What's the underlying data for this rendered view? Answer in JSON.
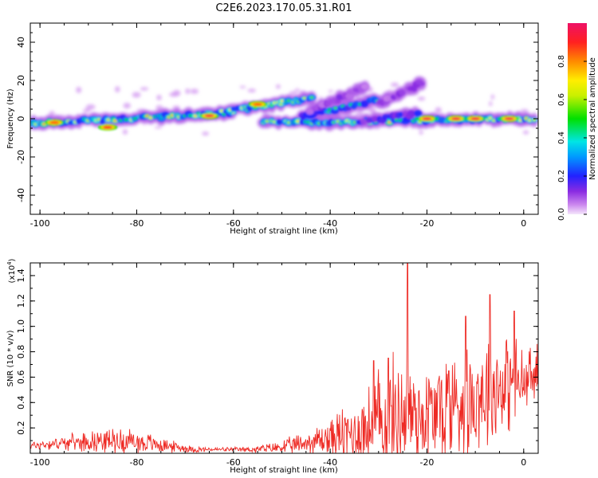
{
  "figure": {
    "title": "C2E6.2023.170.05.31.R01"
  },
  "chart_data": [
    {
      "type": "heatmap",
      "name": "spectrogram",
      "xlabel": "Height of straight line (km)",
      "ylabel": "Frequency (Hz)",
      "xlim": [
        -102,
        3
      ],
      "ylim": [
        -50,
        50
      ],
      "xticks": [
        -100,
        -80,
        -60,
        -40,
        -20,
        0
      ],
      "yticks": [
        -40,
        -20,
        0,
        20,
        40
      ],
      "colorbar": {
        "label": "Normalized spectral amplitude",
        "range": [
          0,
          1.0
        ],
        "ticks": [
          0.0,
          0.2,
          0.4,
          0.6,
          0.8
        ],
        "tick_labels": [
          "0.0",
          "0.2",
          "0.4",
          "0.6",
          "0.8"
        ]
      },
      "tracks": [
        {
          "from": [
            -102,
            -2.5
          ],
          "to": [
            -60,
            3
          ],
          "peak_amplitude": 0.95
        },
        {
          "from": [
            -66,
            2
          ],
          "to": [
            -44,
            11
          ],
          "peak_amplitude": 0.9
        },
        {
          "from": [
            -54,
            -2
          ],
          "to": [
            2,
            0
          ],
          "peak_amplitude": 0.95
        },
        {
          "from": [
            -46,
            1
          ],
          "to": [
            -30,
            10
          ],
          "peak_amplitude": 0.7
        },
        {
          "from": [
            -44,
            4
          ],
          "to": [
            -33,
            16
          ],
          "peak_amplitude": 0.3
        },
        {
          "from": [
            -30,
            8
          ],
          "to": [
            -21,
            19
          ],
          "peak_amplitude": 0.3
        },
        {
          "from": [
            -33,
            -2
          ],
          "to": [
            -22,
            3
          ],
          "peak_amplitude": 0.5
        }
      ],
      "hot_spots": [
        {
          "x": -97,
          "y": -2,
          "amplitude": 0.85
        },
        {
          "x": -86,
          "y": -4.5,
          "amplitude": 0.9
        },
        {
          "x": -65,
          "y": 1.5,
          "amplitude": 0.95
        },
        {
          "x": -55,
          "y": 7.5,
          "amplitude": 0.85
        },
        {
          "x": -20,
          "y": 0,
          "amplitude": 0.95
        },
        {
          "x": -14,
          "y": 0,
          "amplitude": 0.95
        },
        {
          "x": -10,
          "y": 0,
          "amplitude": 0.95
        },
        {
          "x": -3,
          "y": 0,
          "amplitude": 0.95
        }
      ]
    },
    {
      "type": "line",
      "name": "snr",
      "xlabel": "Height of straight line (km)",
      "ylabel": "SNR (10 * v/v)",
      "y_scale_note": "(x10",
      "y_scale_exp": "4",
      "y_scale_close": ")",
      "xlim": [
        -102,
        3
      ],
      "ylim": [
        0,
        1.5
      ],
      "xticks": [
        -100,
        -80,
        -60,
        -40,
        -20,
        0
      ],
      "yticks": [
        0.2,
        0.4,
        0.6,
        0.8,
        1.0,
        1.2,
        1.4
      ],
      "ytick_labels": [
        "0.2",
        "0.4",
        "0.6",
        "0.8",
        "1.0",
        "1.2",
        "1.4"
      ],
      "color": "#ee2a24",
      "envelope": {
        "x": [
          -102,
          -96,
          -92,
          -88,
          -84,
          -80,
          -76,
          -72,
          -68,
          -64,
          -60,
          -56,
          -52,
          -48,
          -44,
          -40,
          -36,
          -32,
          -30,
          -28,
          -26,
          -24.5,
          -24,
          -23,
          -22,
          -20,
          -18,
          -16,
          -14,
          -12,
          -10,
          -8,
          -6,
          -4,
          -2,
          0,
          2,
          3
        ],
        "baseline": [
          0.06,
          0.08,
          0.09,
          0.1,
          0.1,
          0.09,
          0.07,
          0.05,
          0.03,
          0.03,
          0.03,
          0.03,
          0.04,
          0.06,
          0.09,
          0.12,
          0.15,
          0.2,
          0.25,
          0.28,
          0.3,
          0.32,
          0.35,
          0.32,
          0.3,
          0.3,
          0.32,
          0.35,
          0.4,
          0.42,
          0.45,
          0.5,
          0.52,
          0.55,
          0.55,
          0.55,
          0.6,
          0.65
        ],
        "spread": [
          0.04,
          0.06,
          0.08,
          0.1,
          0.12,
          0.12,
          0.08,
          0.05,
          0.03,
          0.02,
          0.02,
          0.03,
          0.05,
          0.08,
          0.12,
          0.2,
          0.3,
          0.4,
          0.5,
          0.55,
          0.55,
          0.6,
          0.6,
          0.55,
          0.5,
          0.5,
          0.55,
          0.55,
          0.6,
          0.6,
          0.5,
          0.55,
          0.55,
          0.45,
          0.45,
          0.35,
          0.3,
          0.25
        ]
      },
      "peaks": [
        {
          "x": -24,
          "y": 1.5
        },
        {
          "x": -7,
          "y": 1.25
        },
        {
          "x": -2,
          "y": 1.12
        },
        {
          "x": -12,
          "y": 1.08
        },
        {
          "x": -31,
          "y": 0.73
        },
        {
          "x": -28,
          "y": 0.75
        },
        {
          "x": -15.5,
          "y": 0.65
        }
      ]
    }
  ]
}
